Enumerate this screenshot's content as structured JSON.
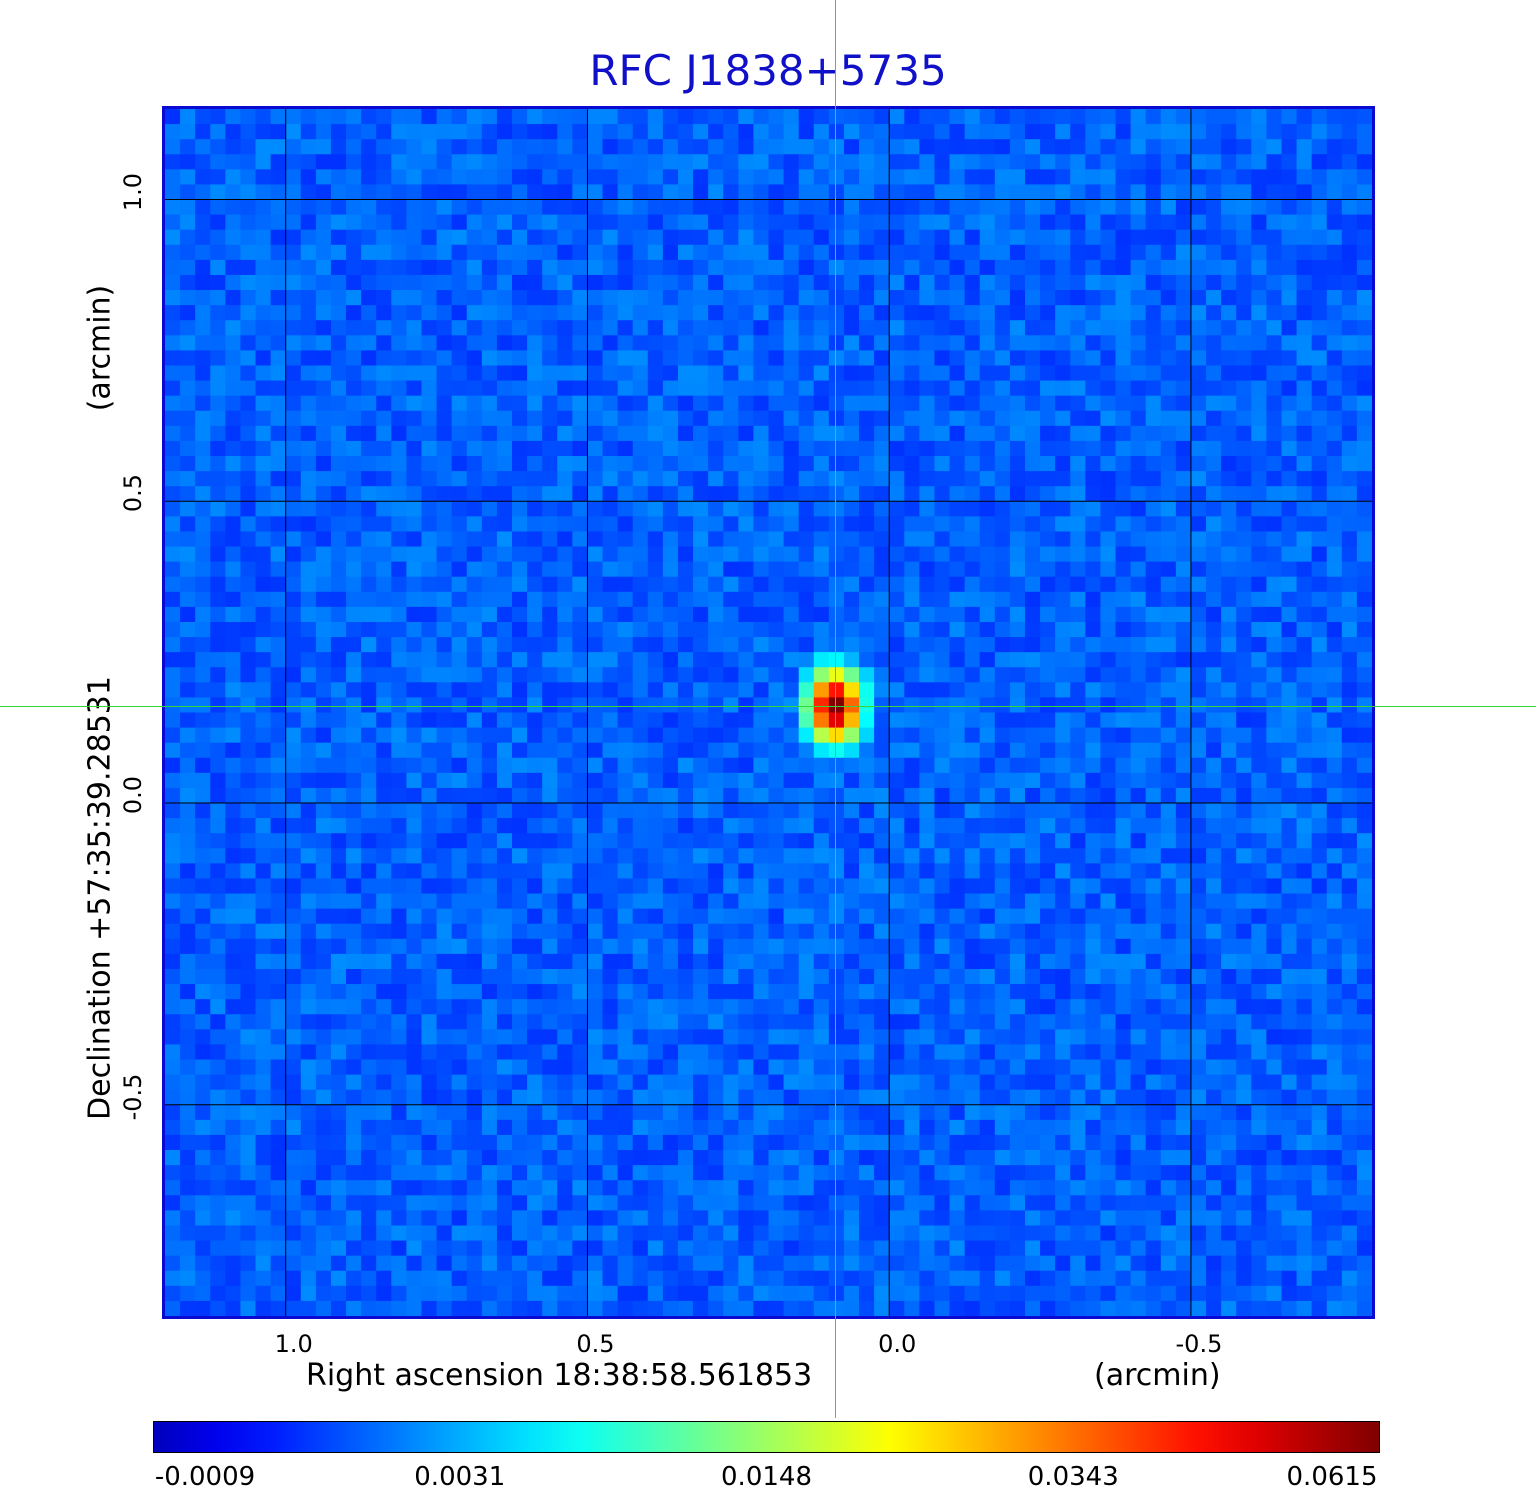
{
  "chart_data": {
    "type": "heatmap",
    "title": "RFC J1838+5735",
    "xlabel": "Right ascension  18:38:58.561853",
    "xlabel_unit": "(arcmin)",
    "ylabel": "Declination  +57:35:39.28531",
    "ylabel_unit": "(arcmin)",
    "xlim": [
      1.2,
      -0.8
    ],
    "ylim": [
      -0.85,
      1.15
    ],
    "x_ticks": [
      "1.0",
      "0.5",
      "0.0",
      "-0.5"
    ],
    "x_tick_values": [
      1.0,
      0.5,
      0.0,
      -0.5
    ],
    "y_ticks": [
      "1.0",
      "0.5",
      "0.0",
      "-0.5"
    ],
    "y_tick_values": [
      1.0,
      0.5,
      0.0,
      -0.5
    ],
    "grid": true,
    "source_peak": {
      "x": 0.09,
      "y": 0.16,
      "value": 0.0615
    },
    "crosshair": {
      "x": 0.09,
      "y": 0.16
    },
    "colorbar": {
      "colormap": "jet",
      "labels": [
        "-0.0009",
        "0.0031",
        "0.0148",
        "0.0343",
        "0.0615"
      ],
      "values": [
        -0.0009,
        0.0031,
        0.0148,
        0.0343,
        0.0615
      ]
    }
  },
  "colors": {
    "title": "#1010c8",
    "frame": "#0a0ad2",
    "crosshair": "#36d636",
    "background_map": "#1448f0"
  }
}
